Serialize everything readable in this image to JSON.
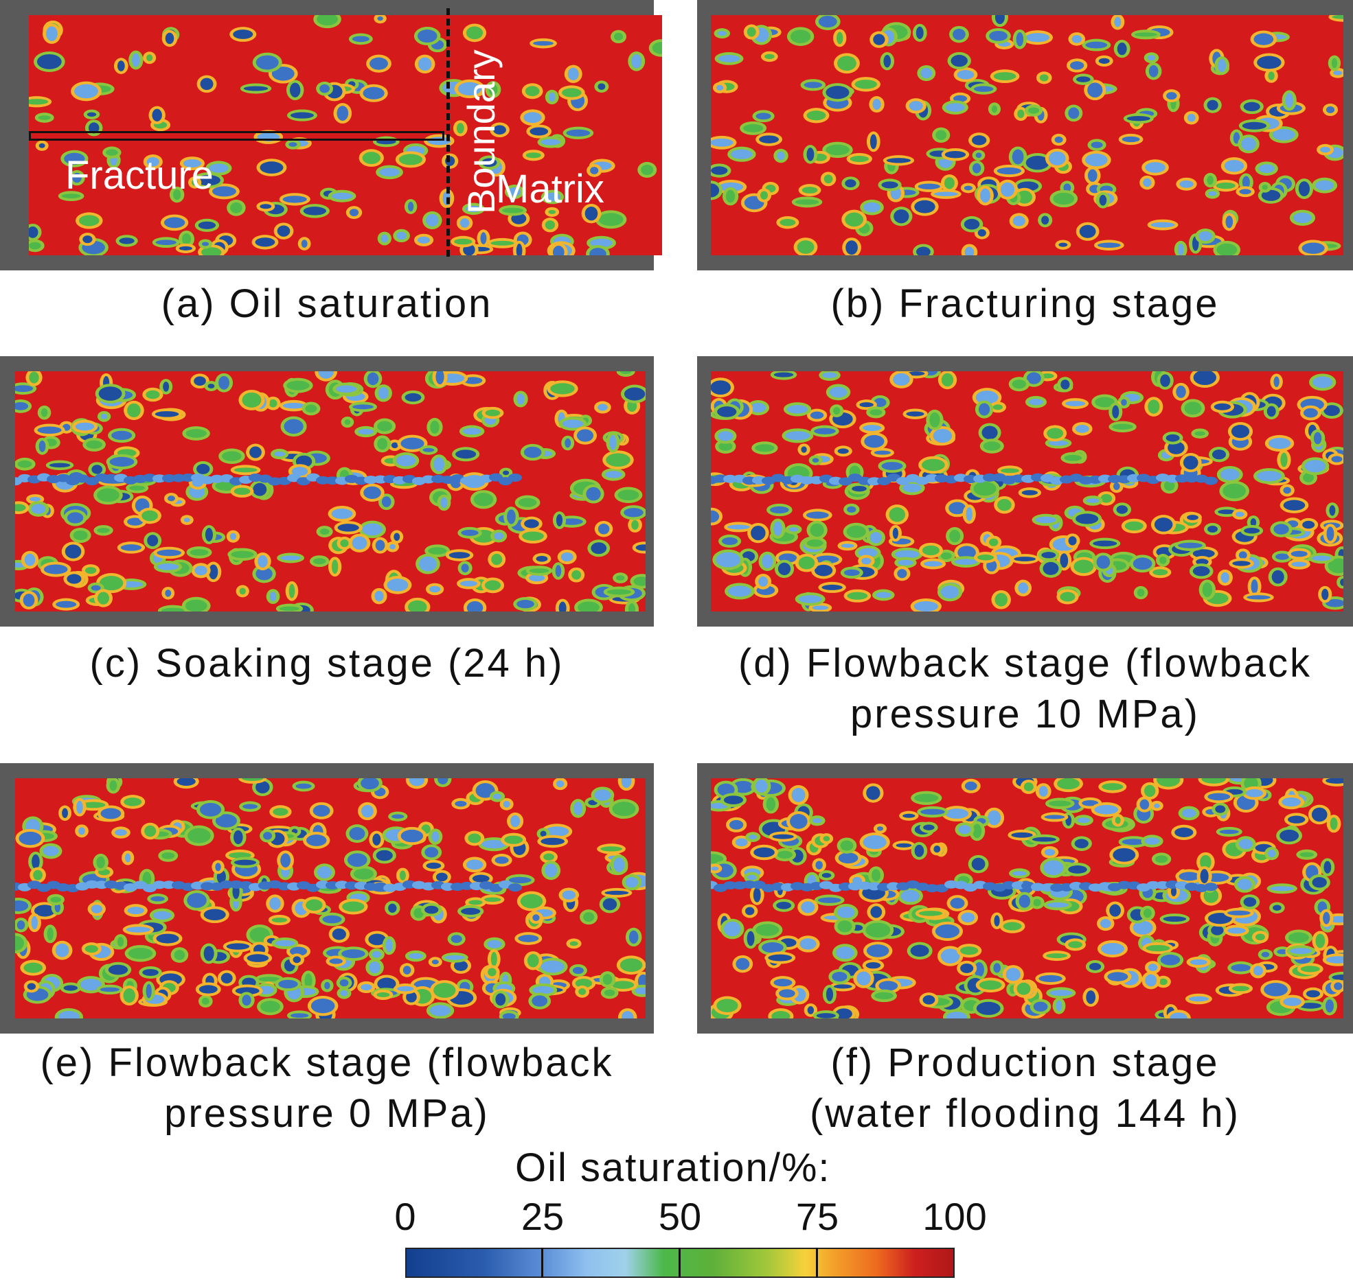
{
  "panels": [
    {
      "id": "a",
      "caption_lines": [
        "(a) Oil saturation"
      ],
      "seed": 11
    },
    {
      "id": "b",
      "caption_lines": [
        "(b) Fracturing stage"
      ],
      "seed": 23
    },
    {
      "id": "c",
      "caption_lines": [
        "(c) Soaking stage (24 h)"
      ],
      "seed": 37
    },
    {
      "id": "d",
      "caption_lines": [
        "(d) Flowback stage (flowback",
        "pressure 10 MPa)"
      ],
      "seed": 41
    },
    {
      "id": "e",
      "caption_lines": [
        "(e) Flowback stage (flowback",
        "pressure 0 MPa)"
      ],
      "seed": 53
    },
    {
      "id": "f",
      "caption_lines": [
        "(f) Production stage",
        "(water flooding 144 h)"
      ],
      "seed": 67
    }
  ],
  "annotations": {
    "fracture": "Fracture",
    "boundary": "Boundary",
    "matrix": "Matrix"
  },
  "legend": {
    "title": "Oil saturation/%:",
    "ticks": [
      "0",
      "25",
      "50",
      "75",
      "100"
    ]
  },
  "colors": {
    "oil_red": "#d41a1a",
    "panel_frame": "#5a5a5a"
  }
}
